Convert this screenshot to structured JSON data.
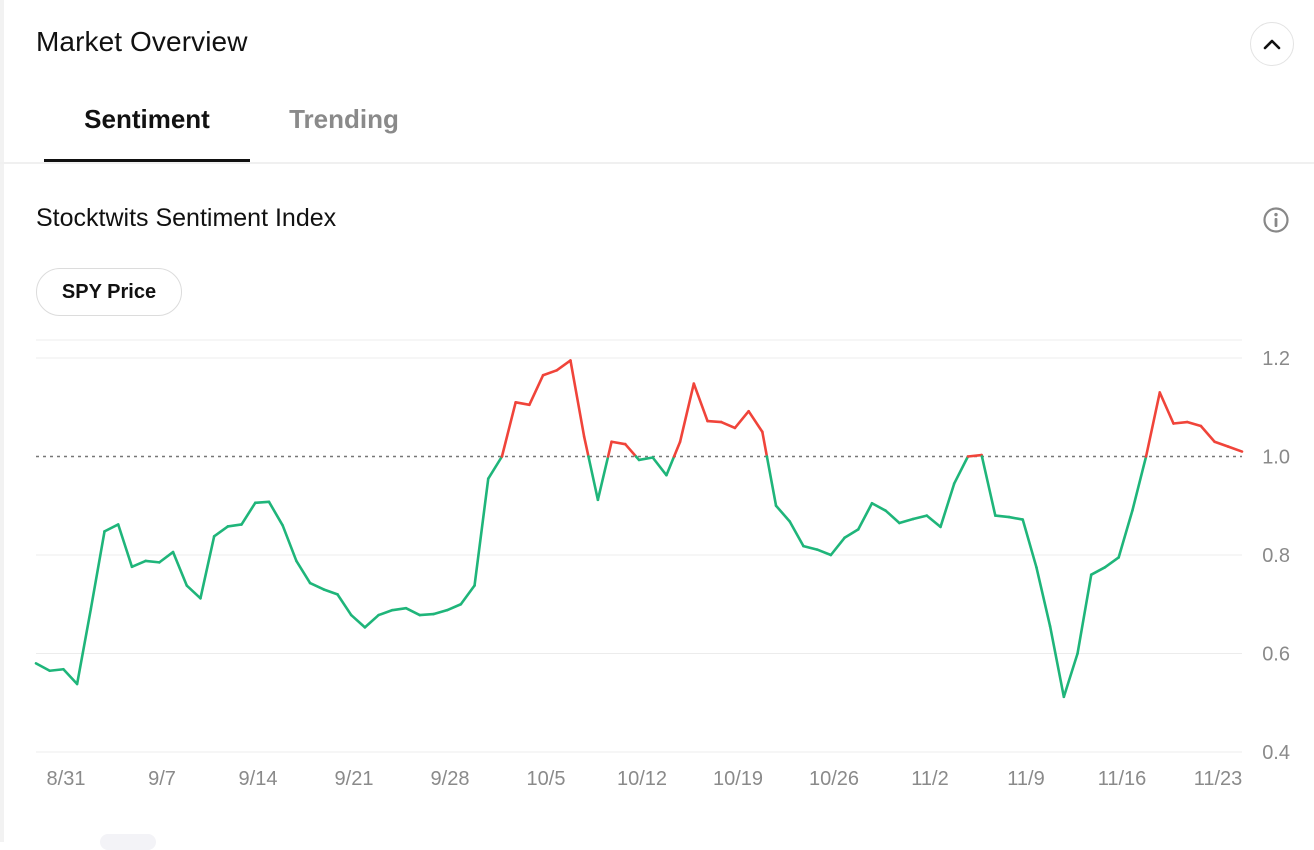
{
  "header": {
    "title": "Market Overview",
    "collapse_icon": "chevron-up-icon"
  },
  "tabs": [
    {
      "label": "Sentiment",
      "active": true
    },
    {
      "label": "Trending",
      "active": false
    }
  ],
  "section": {
    "title": "Stocktwits Sentiment Index",
    "info_icon": "info-icon"
  },
  "toggle": {
    "label": "SPY Price"
  },
  "colors": {
    "bullish": "#1fb57a",
    "bearish": "#f0443a",
    "grid": "#ececec",
    "baseline": "#777777",
    "text_muted": "#8a8a8a"
  },
  "chart_data": {
    "type": "line",
    "title": "",
    "xlabel": "",
    "ylabel": "",
    "ylim": [
      0.4,
      1.2
    ],
    "yticks": [
      1.2,
      1.0,
      0.8,
      0.6,
      0.4
    ],
    "ytick_labels": [
      "1.2",
      "1.0",
      "0.8",
      "0.6",
      "0.4"
    ],
    "reference_line": 1.0,
    "xticks": [
      "8/31",
      "9/7",
      "9/14",
      "9/21",
      "9/28",
      "10/5",
      "10/12",
      "10/19",
      "10/26",
      "11/2",
      "11/9",
      "11/16",
      "11/23"
    ],
    "grid": true,
    "color_rule": "above reference red, below reference green",
    "values": [
      0.58,
      0.565,
      0.568,
      0.538,
      0.69,
      0.848,
      0.862,
      0.776,
      0.788,
      0.785,
      0.806,
      0.738,
      0.712,
      0.838,
      0.858,
      0.862,
      0.906,
      0.908,
      0.86,
      0.788,
      0.743,
      0.73,
      0.72,
      0.678,
      0.653,
      0.678,
      0.688,
      0.692,
      0.678,
      0.68,
      0.688,
      0.7,
      0.738,
      0.955,
      1.0,
      1.11,
      1.105,
      1.165,
      1.175,
      1.195,
      1.04,
      0.912,
      1.03,
      1.025,
      0.993,
      0.998,
      0.962,
      1.03,
      1.148,
      1.072,
      1.07,
      1.058,
      1.092,
      1.05,
      0.9,
      0.868,
      0.818,
      0.811,
      0.8,
      0.835,
      0.852,
      0.905,
      0.89,
      0.865,
      0.873,
      0.88,
      0.857,
      0.945,
      1.0,
      1.003,
      0.88,
      0.877,
      0.872,
      0.775,
      0.655,
      0.512,
      0.6,
      0.76,
      0.775,
      0.795,
      0.89,
      1.0,
      1.13,
      1.067,
      1.07,
      1.062,
      1.03,
      1.02,
      1.01
    ]
  }
}
